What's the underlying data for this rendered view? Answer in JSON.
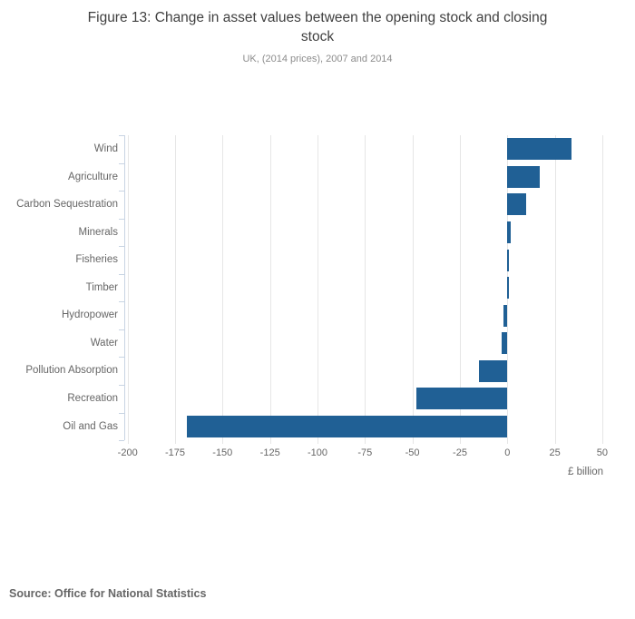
{
  "page": {
    "title": "Figure 13: Change in asset values between the opening stock and closing stock",
    "subtitle": "UK, (2014 prices), 2007 and 2014",
    "source": "Source: Office for National Statistics"
  },
  "chart_data": {
    "type": "bar",
    "orientation": "horizontal",
    "title": "Figure 13: Change in asset values between the opening stock and closing stock",
    "subtitle": "UK, (2014 prices), 2007 and 2014",
    "categories": [
      "Wind",
      "Agriculture",
      "Carbon Sequestration",
      "Minerals",
      "Fisheries",
      "Timber",
      "Hydropower",
      "Water",
      "Pollution Absorption",
      "Recreation",
      "Oil and Gas"
    ],
    "values": [
      34,
      17,
      10,
      2,
      1,
      1,
      -2,
      -3,
      -15,
      -48,
      -169
    ],
    "xlabel": "£ billion",
    "ylabel": "",
    "xticks": [
      -200,
      -175,
      -150,
      -125,
      -100,
      -75,
      -50,
      -25,
      0,
      25,
      50
    ],
    "xlim": [
      -202,
      51
    ],
    "grid": true,
    "legend": "none",
    "bar_color": "#206095",
    "gridline_color": "#e6e6e6",
    "axis_line_color": "#c8d4e3",
    "source": "Source: Office for National Statistics"
  }
}
